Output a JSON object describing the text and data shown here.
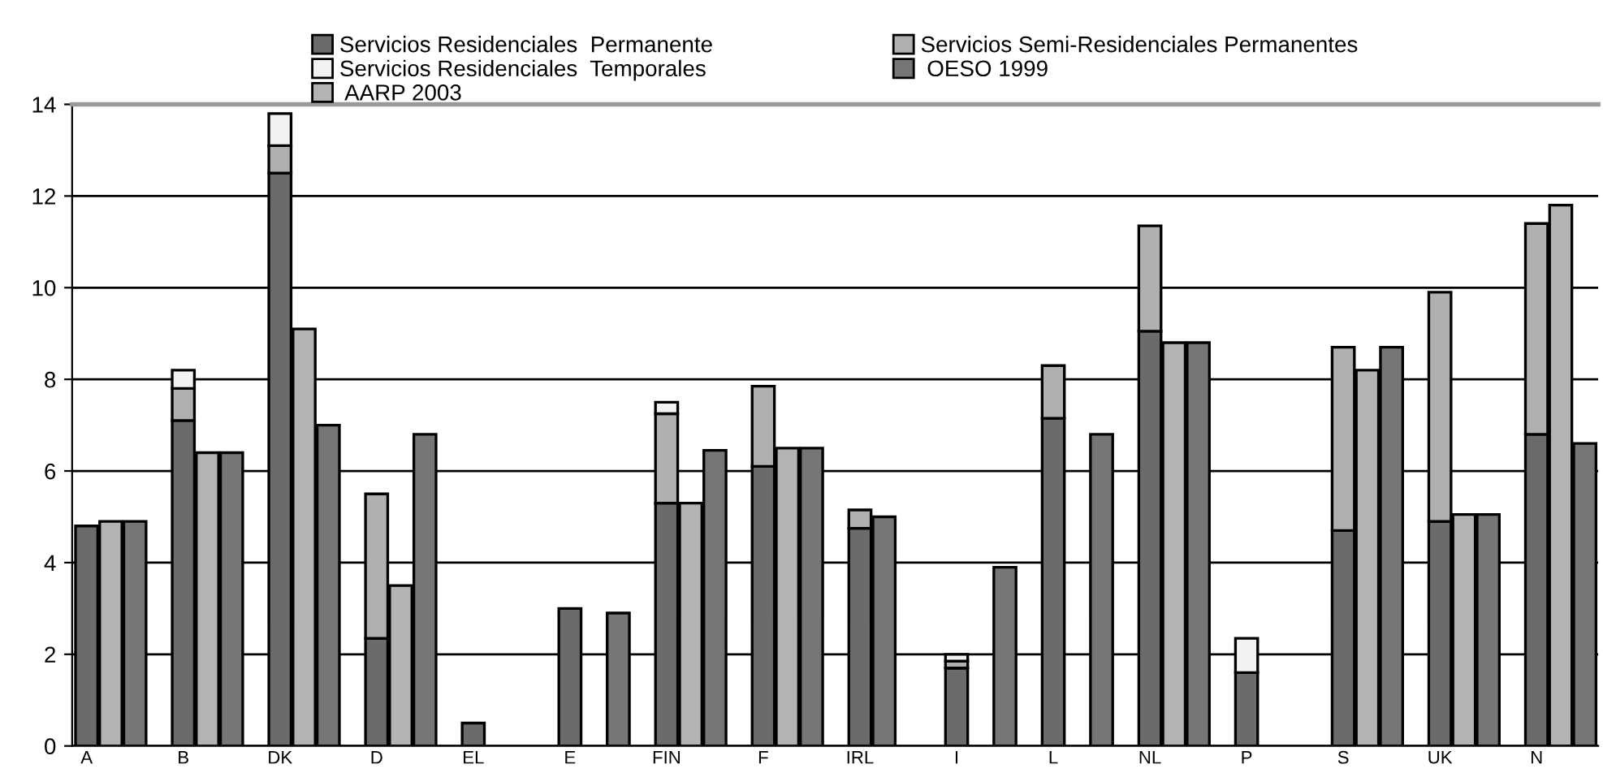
{
  "chart_data": {
    "type": "bar",
    "stacked": true,
    "categories": [
      "A",
      null,
      null,
      null,
      "B",
      null,
      null,
      null,
      "DK",
      null,
      null,
      null,
      "D",
      null,
      null,
      null,
      "EL",
      null,
      null,
      null,
      "E",
      null,
      null,
      null,
      "FIN",
      null,
      null,
      null,
      "F",
      null,
      null,
      null,
      "IRL",
      null,
      null,
      null,
      "I",
      null,
      null,
      null,
      "L",
      null,
      null,
      null,
      "NL",
      null,
      null,
      null,
      "P",
      null,
      null,
      null,
      "S",
      null,
      null,
      null,
      "UK",
      null,
      null,
      null,
      "N",
      null,
      null
    ],
    "series": [
      {
        "name": "Servicios Residenciales  Permanente",
        "color": "#6b6b6b",
        "values": [
          4.8,
          null,
          null,
          null,
          7.1,
          null,
          null,
          null,
          12.5,
          null,
          null,
          null,
          2.35,
          null,
          null,
          null,
          0.5,
          null,
          null,
          null,
          3.0,
          null,
          null,
          null,
          5.3,
          null,
          null,
          null,
          6.1,
          null,
          null,
          null,
          4.75,
          null,
          null,
          null,
          1.7,
          null,
          null,
          null,
          7.15,
          null,
          null,
          null,
          9.05,
          null,
          null,
          null,
          1.6,
          null,
          null,
          null,
          4.7,
          null,
          null,
          null,
          4.9,
          null,
          null,
          null,
          6.8,
          null,
          null
        ]
      },
      {
        "name": "Servicios Semi-Residenciales Permanentes",
        "color": "#b0b0b0",
        "values": [
          null,
          null,
          null,
          null,
          0.7,
          null,
          null,
          null,
          0.6,
          null,
          null,
          null,
          3.15,
          null,
          null,
          null,
          null,
          null,
          null,
          null,
          null,
          null,
          null,
          null,
          1.95,
          null,
          null,
          null,
          1.75,
          null,
          null,
          null,
          0.4,
          null,
          null,
          null,
          0.15,
          null,
          null,
          null,
          1.15,
          null,
          null,
          null,
          2.3,
          null,
          null,
          null,
          null,
          null,
          null,
          null,
          4.0,
          null,
          null,
          null,
          5.0,
          null,
          null,
          null,
          4.6,
          null,
          null
        ]
      },
      {
        "name": "Servicios Residenciales  Temporales",
        "color": "#f2f2f2",
        "values": [
          null,
          null,
          null,
          null,
          0.4,
          null,
          null,
          null,
          0.7,
          null,
          null,
          null,
          null,
          null,
          null,
          null,
          null,
          null,
          null,
          null,
          null,
          null,
          null,
          null,
          0.25,
          null,
          null,
          null,
          null,
          null,
          null,
          null,
          null,
          null,
          null,
          null,
          0.15,
          null,
          null,
          null,
          null,
          null,
          null,
          null,
          null,
          null,
          null,
          null,
          0.75,
          null,
          null,
          null,
          null,
          null,
          null,
          null,
          null,
          null,
          null,
          null,
          null,
          null,
          null
        ]
      },
      {
        "name": " AARP 2003",
        "color": "#b3b3b3",
        "values": [
          null,
          4.9,
          null,
          null,
          null,
          6.4,
          null,
          null,
          null,
          9.1,
          null,
          null,
          null,
          3.5,
          null,
          null,
          null,
          null,
          null,
          null,
          null,
          null,
          null,
          null,
          null,
          5.3,
          null,
          null,
          null,
          6.5,
          null,
          null,
          null,
          null,
          null,
          null,
          null,
          null,
          null,
          null,
          null,
          null,
          null,
          null,
          null,
          8.8,
          null,
          null,
          null,
          null,
          null,
          null,
          null,
          8.2,
          null,
          null,
          null,
          5.05,
          null,
          null,
          null,
          11.8,
          null
        ]
      },
      {
        "name": " OESO 1999",
        "color": "#767676",
        "values": [
          null,
          null,
          4.9,
          null,
          null,
          null,
          6.4,
          null,
          null,
          null,
          7.0,
          null,
          null,
          null,
          6.8,
          null,
          null,
          null,
          null,
          null,
          null,
          null,
          2.9,
          null,
          null,
          null,
          6.45,
          null,
          null,
          null,
          6.5,
          null,
          null,
          5.0,
          null,
          null,
          null,
          null,
          3.9,
          null,
          null,
          null,
          6.8,
          null,
          null,
          null,
          8.8,
          null,
          null,
          null,
          null,
          null,
          null,
          null,
          8.7,
          null,
          null,
          null,
          5.05,
          null,
          null,
          null,
          6.6
        ]
      }
    ],
    "ylim": [
      0,
      14
    ],
    "yticks": [
      0,
      2,
      4,
      6,
      8,
      10,
      12,
      14
    ],
    "grid": "y",
    "legend": "top"
  }
}
